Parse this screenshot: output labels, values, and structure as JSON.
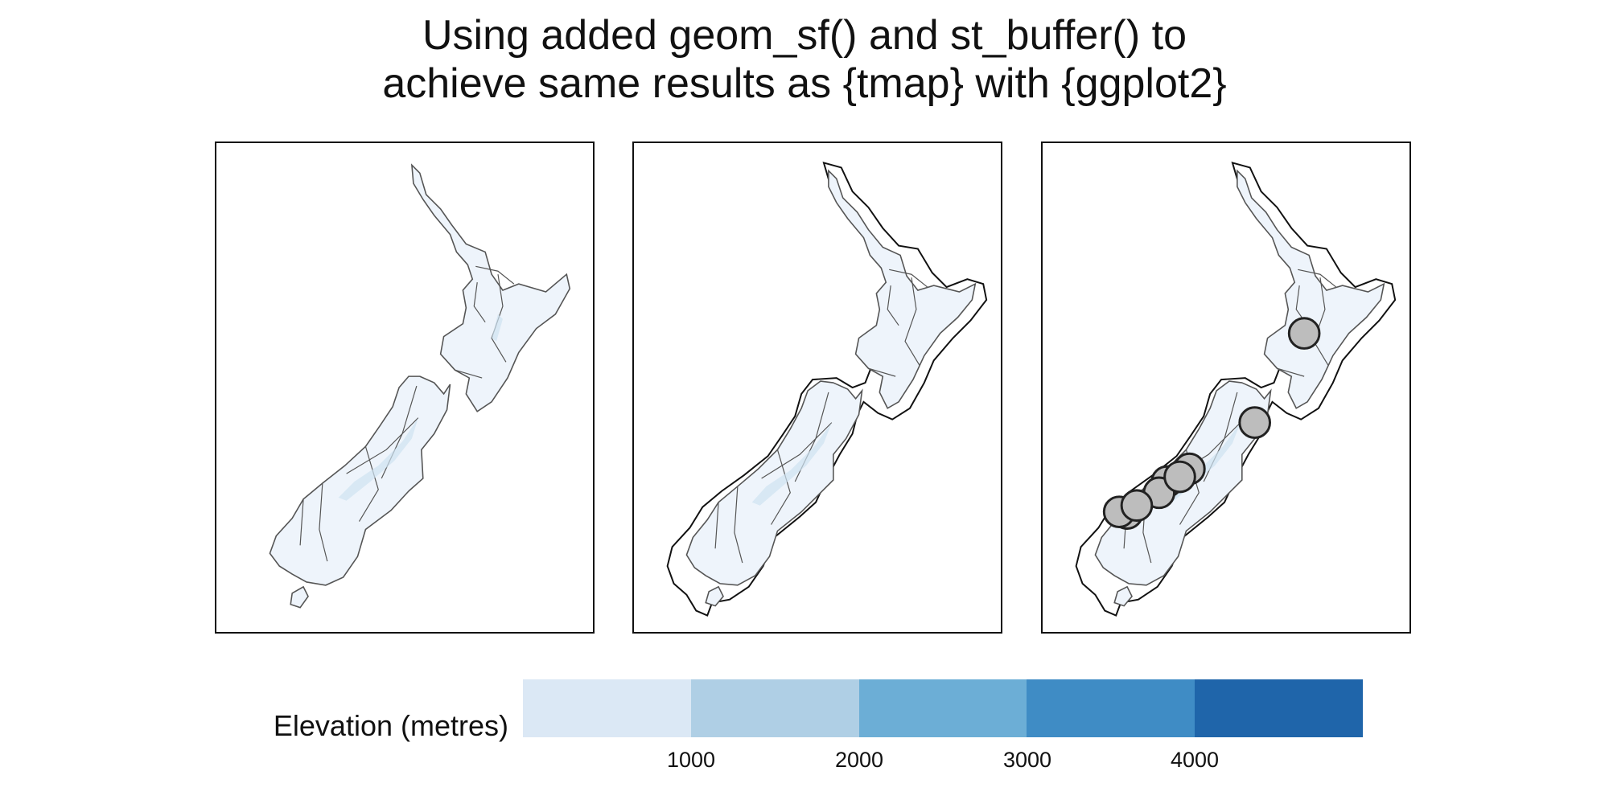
{
  "figure": {
    "title_lines": [
      "Using added geom_sf() and st_buffer() to",
      "achieve same results as {tmap} with {ggplot2}"
    ]
  },
  "map": {
    "panels": [
      "regions",
      "regions-with-buffer",
      "regions-with-buffer-and-points"
    ],
    "land_fill": "#eef4fb",
    "land_outline": "#555555",
    "buffer_outline": "#111111",
    "points": {
      "fill": "#bdbdbd",
      "stroke": "#222222",
      "count": 9
    }
  },
  "legend": {
    "title": "Elevation (metres)",
    "ticks": [
      "1000",
      "2000",
      "3000",
      "4000"
    ],
    "colors": [
      "#dbe8f5",
      "#afcfe5",
      "#6caed6",
      "#3f8cc5",
      "#1f65aa"
    ]
  }
}
